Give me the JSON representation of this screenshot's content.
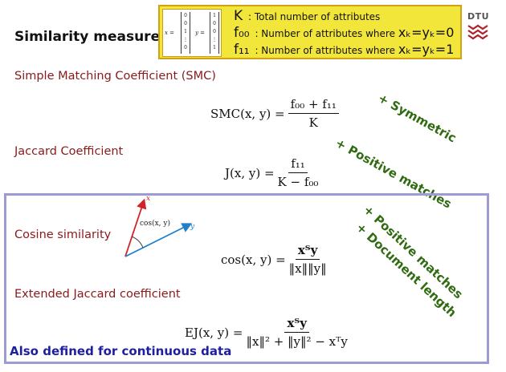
{
  "header": {
    "title": "Similarity measures",
    "brand": "DTU",
    "vectors": {
      "x_label": "x =",
      "y_label": "y =",
      "x_entries": [
        "0",
        "0",
        "1",
        "⋮",
        "0"
      ],
      "y_entries": [
        "1",
        "0",
        "0",
        "⋮",
        "1"
      ]
    },
    "legend": [
      {
        "symbol": "K",
        "text": ": Total number of attributes",
        "condition": ""
      },
      {
        "symbol": "f₀₀",
        "text": ": Number of attributes where",
        "condition": "xₖ=yₖ=0"
      },
      {
        "symbol": "f₁₁",
        "text": ": Number of attributes where",
        "condition": "xₖ=yₖ=1"
      }
    ]
  },
  "sections": {
    "smc": {
      "title": "Simple Matching Coefficient (SMC)",
      "lhs": "SMC(x, y) =",
      "numerator": "f₀₀ + f₁₁",
      "denominator": "K",
      "notes": [
        "+ Symmetric"
      ]
    },
    "jaccard": {
      "title": "Jaccard Coefficient",
      "lhs": "J(x, y) =",
      "numerator": "f₁₁",
      "denominator": "K − f₀₀",
      "notes": [
        "+ Positive matches"
      ]
    },
    "cosine": {
      "title": "Cosine similarity",
      "lhs": "cos(x, y) =",
      "numerator": "xᵀy",
      "denominator": "‖x‖‖y‖",
      "notes": [
        "+ Positive matches",
        "+ Document length"
      ],
      "diagram": {
        "x_label": "x",
        "y_label": "y",
        "angle_label": "cos(x, y)"
      }
    },
    "ext_jaccard": {
      "title": "Extended Jaccard coefficient",
      "lhs": "EJ(x, y) =",
      "numerator": "xᵀy",
      "denominator": "‖x‖² + ‖y‖² − xᵀy"
    }
  },
  "footer": {
    "note": "Also defined for continuous data"
  },
  "colors": {
    "section_title": "#8a1a1a",
    "note_green": "#2f6b10",
    "footer_blue": "#1e1ea0",
    "frame": "#9d9bd3",
    "def_box": "#f2e63a"
  }
}
